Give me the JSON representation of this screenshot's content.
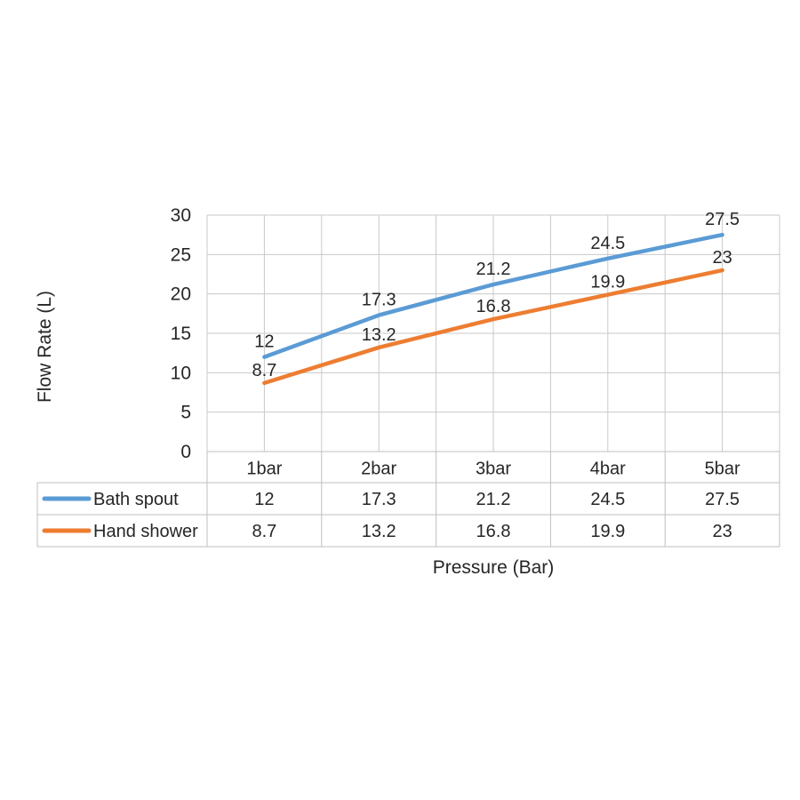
{
  "chart_data": {
    "type": "line",
    "categories": [
      "1bar",
      "2bar",
      "3bar",
      "4bar",
      "5bar"
    ],
    "series": [
      {
        "name": "Bath spout",
        "color": "#5B9BD5",
        "values": [
          12,
          17.3,
          21.2,
          24.5,
          27.5
        ]
      },
      {
        "name": "Hand shower",
        "color": "#ED7D31",
        "values": [
          8.7,
          13.2,
          16.8,
          19.9,
          23
        ]
      }
    ],
    "title": "",
    "xlabel": "Pressure (Bar)",
    "ylabel": "Flow Rate (L)",
    "ylim": [
      0,
      30
    ],
    "ytick_step": 5,
    "yticks": [
      0,
      5,
      10,
      15,
      20,
      25,
      30
    ],
    "grid": true,
    "x_minor_gridlines": true,
    "data_labels": true,
    "legend_position": "data-table-left",
    "data_table": true,
    "colors": {
      "gridline": "#c9c9c9",
      "table_border": "#bfbfbf",
      "text": "#262626",
      "background": "#ffffff"
    }
  }
}
